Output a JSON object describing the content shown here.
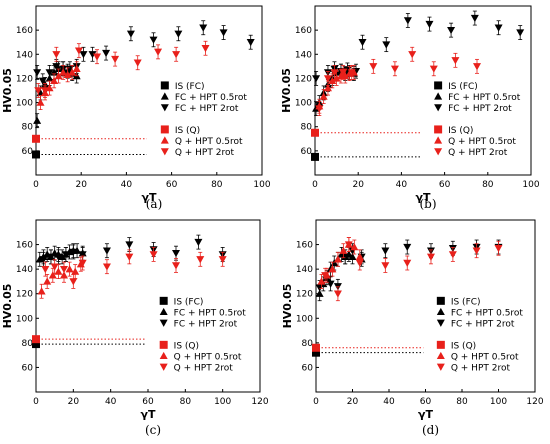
{
  "chart_data": [
    {
      "type": "scatter",
      "panel_label": "(a)",
      "xlabel": "γT",
      "ylabel": "HV0.05",
      "xlim": [
        0,
        100
      ],
      "ylim": [
        40,
        180
      ],
      "xticks": [
        0,
        20,
        40,
        60,
        80,
        100
      ],
      "yticks": [
        60,
        80,
        100,
        120,
        140,
        160
      ],
      "legend": [
        "IS (FC)",
        "FC + HPT 0.5rot",
        "FC + HPT 2rot",
        "IS (Q)",
        "Q + HPT 0.5rot",
        "Q + HPT 2rot"
      ],
      "reference_lines": [
        {
          "series": "IS (FC)",
          "y": 57,
          "color": "#000000"
        },
        {
          "series": "IS (Q)",
          "y": 70,
          "color": "#e8201b"
        }
      ],
      "series": [
        {
          "name": "IS (FC)",
          "marker": "square",
          "color": "#000000",
          "points": [
            [
              0,
              57
            ]
          ]
        },
        {
          "name": "FC + HPT 0.5rot",
          "marker": "triangle-up",
          "color": "#000000",
          "points": [
            [
              0.5,
              85
            ],
            [
              2,
              108
            ],
            [
              4,
              115
            ],
            [
              6,
              120
            ],
            [
              8,
              125
            ],
            [
              10,
              128
            ],
            [
              12,
              128
            ],
            [
              14,
              126
            ],
            [
              16,
              124
            ],
            [
              18,
              122
            ]
          ]
        },
        {
          "name": "FC + HPT 2rot",
          "marker": "triangle-down",
          "color": "#000000",
          "points": [
            [
              0.5,
              125
            ],
            [
              3,
              118
            ],
            [
              6,
              125
            ],
            [
              9,
              130
            ],
            [
              12,
              128
            ],
            [
              15,
              128
            ],
            [
              18,
              130
            ],
            [
              21,
              140
            ],
            [
              25,
              140
            ],
            [
              31,
              141
            ],
            [
              42,
              157
            ],
            [
              52,
              152
            ],
            [
              63,
              157
            ],
            [
              74,
              162
            ],
            [
              83,
              158
            ],
            [
              95,
              150
            ]
          ]
        },
        {
          "name": "IS (Q)",
          "marker": "square",
          "color": "#e8201b",
          "points": [
            [
              0,
              70
            ]
          ]
        },
        {
          "name": "Q + HPT 0.5rot",
          "marker": "triangle-up",
          "color": "#e8201b",
          "points": [
            [
              2,
              100
            ],
            [
              4,
              108
            ],
            [
              6,
              112
            ],
            [
              8,
              118
            ],
            [
              10,
              122
            ],
            [
              12,
              125
            ],
            [
              14,
              123
            ],
            [
              16,
              125
            ],
            [
              18,
              128
            ]
          ]
        },
        {
          "name": "Q + HPT 2rot",
          "marker": "triangle-down",
          "color": "#e8201b",
          "points": [
            [
              1,
              110
            ],
            [
              4,
              110
            ],
            [
              9,
              140
            ],
            [
              19,
              143
            ],
            [
              27,
              138
            ],
            [
              35,
              136
            ],
            [
              45,
              133
            ],
            [
              54,
              142
            ],
            [
              62,
              140
            ],
            [
              75,
              145
            ]
          ]
        }
      ]
    },
    {
      "type": "scatter",
      "panel_label": "(b)",
      "xlabel": "γT",
      "ylabel": "HV0.05",
      "xlim": [
        0,
        100
      ],
      "ylim": [
        40,
        180
      ],
      "xticks": [
        0,
        20,
        40,
        60,
        80,
        100
      ],
      "yticks": [
        60,
        80,
        100,
        120,
        140,
        160
      ],
      "legend": [
        "IS (FC)",
        "FC + HPT 0.5rot",
        "FC + HPT 2rot",
        "IS (Q)",
        "Q + HPT 0.5rot",
        "Q + HPT 2rot"
      ],
      "reference_lines": [
        {
          "series": "IS (FC)",
          "y": 55,
          "color": "#000000"
        },
        {
          "series": "IS (Q)",
          "y": 75,
          "color": "#e8201b"
        }
      ],
      "series": [
        {
          "name": "IS (FC)",
          "marker": "square",
          "color": "#000000",
          "points": [
            [
              0,
              55
            ]
          ]
        },
        {
          "name": "FC + HPT 0.5rot",
          "marker": "triangle-up",
          "color": "#000000",
          "points": [
            [
              0.5,
              95
            ],
            [
              2,
              100
            ],
            [
              4,
              108
            ],
            [
              6,
              115
            ],
            [
              8,
              120
            ],
            [
              10,
              125
            ],
            [
              12,
              126
            ],
            [
              14,
              124
            ],
            [
              16,
              125
            ],
            [
              18,
              124
            ]
          ]
        },
        {
          "name": "FC + HPT 2rot",
          "marker": "triangle-down",
          "color": "#000000",
          "points": [
            [
              0.5,
              120
            ],
            [
              6,
              125
            ],
            [
              9,
              128
            ],
            [
              12,
              126
            ],
            [
              15,
              127
            ],
            [
              19,
              126
            ],
            [
              22,
              150
            ],
            [
              33,
              148
            ],
            [
              43,
              168
            ],
            [
              53,
              165
            ],
            [
              63,
              160
            ],
            [
              74,
              170
            ],
            [
              85,
              162
            ],
            [
              95,
              158
            ]
          ]
        },
        {
          "name": "IS (Q)",
          "marker": "square",
          "color": "#e8201b",
          "points": [
            [
              0,
              75
            ]
          ]
        },
        {
          "name": "Q + HPT 0.5rot",
          "marker": "triangle-up",
          "color": "#e8201b",
          "points": [
            [
              2,
              97
            ],
            [
              4,
              105
            ],
            [
              6,
              112
            ],
            [
              8,
              118
            ],
            [
              10,
              120
            ],
            [
              12,
              122
            ],
            [
              14,
              122
            ],
            [
              16,
              124
            ],
            [
              18,
              125
            ]
          ]
        },
        {
          "name": "Q + HPT 2rot",
          "marker": "triangle-down",
          "color": "#e8201b",
          "points": [
            [
              2,
              95
            ],
            [
              6,
              120
            ],
            [
              9,
              125
            ],
            [
              13,
              125
            ],
            [
              17,
              125
            ],
            [
              27,
              130
            ],
            [
              37,
              128
            ],
            [
              45,
              140
            ],
            [
              55,
              128
            ],
            [
              65,
              135
            ],
            [
              75,
              130
            ]
          ]
        }
      ]
    },
    {
      "type": "scatter",
      "panel_label": "(c)",
      "xlabel": "γT",
      "ylabel": "HV0.05",
      "xlim": [
        0,
        120
      ],
      "ylim": [
        40,
        180
      ],
      "xticks": [
        0,
        20,
        40,
        60,
        80,
        100,
        120
      ],
      "yticks": [
        60,
        80,
        100,
        120,
        140,
        160
      ],
      "legend": [
        "IS (FC)",
        "FC + HPT 0.5rot",
        "FC + HPT 2rot",
        "IS (Q)",
        "Q + HPT 0.5rot",
        "Q + HPT 2rot"
      ],
      "reference_lines": [
        {
          "series": "IS (FC)",
          "y": 79,
          "color": "#000000"
        },
        {
          "series": "IS (Q)",
          "y": 83,
          "color": "#e8201b"
        }
      ],
      "series": [
        {
          "name": "IS (FC)",
          "marker": "square",
          "color": "#000000",
          "points": [
            [
              0,
              79
            ]
          ]
        },
        {
          "name": "FC + HPT 0.5rot",
          "marker": "triangle-up",
          "color": "#000000",
          "points": [
            [
              2,
              148
            ],
            [
              4,
              150
            ],
            [
              6,
              152
            ],
            [
              8,
              150
            ],
            [
              10,
              153
            ],
            [
              12,
              152
            ],
            [
              14,
              150
            ],
            [
              16,
              152
            ],
            [
              18,
              154
            ],
            [
              20,
              155
            ],
            [
              22,
              155
            ],
            [
              25,
              153
            ]
          ]
        },
        {
          "name": "FC + HPT 2rot",
          "marker": "triangle-down",
          "color": "#000000",
          "points": [
            [
              4,
              148
            ],
            [
              8,
              150
            ],
            [
              12,
              150
            ],
            [
              16,
              152
            ],
            [
              20,
              154
            ],
            [
              25,
              152
            ],
            [
              38,
              155
            ],
            [
              50,
              160
            ],
            [
              63,
              156
            ],
            [
              75,
              153
            ],
            [
              87,
              162
            ],
            [
              100,
              152
            ]
          ]
        },
        {
          "name": "IS (Q)",
          "marker": "square",
          "color": "#e8201b",
          "points": [
            [
              0,
              83
            ]
          ]
        },
        {
          "name": "Q + HPT 0.5rot",
          "marker": "triangle-up",
          "color": "#e8201b",
          "points": [
            [
              3,
              122
            ],
            [
              6,
              130
            ],
            [
              9,
              135
            ],
            [
              12,
              138
            ],
            [
              15,
              135
            ],
            [
              18,
              140
            ],
            [
              21,
              138
            ],
            [
              24,
              144
            ]
          ]
        },
        {
          "name": "Q + HPT 2rot",
          "marker": "triangle-down",
          "color": "#e8201b",
          "points": [
            [
              5,
              140
            ],
            [
              10,
              142
            ],
            [
              15,
              140
            ],
            [
              20,
              130
            ],
            [
              25,
              145
            ],
            [
              38,
              142
            ],
            [
              50,
              150
            ],
            [
              63,
              152
            ],
            [
              75,
              143
            ],
            [
              88,
              148
            ],
            [
              100,
              148
            ]
          ]
        }
      ]
    },
    {
      "type": "scatter",
      "panel_label": "(d)",
      "xlabel": "γT",
      "ylabel": "HV0.05",
      "xlim": [
        0,
        120
      ],
      "ylim": [
        40,
        180
      ],
      "xticks": [
        0,
        20,
        40,
        60,
        80,
        100,
        120
      ],
      "yticks": [
        60,
        80,
        100,
        120,
        140,
        160
      ],
      "legend": [
        "IS (FC)",
        "FC + HPT 0.5rot",
        "FC + HPT 2rot",
        "IS (Q)",
        "Q + HPT 0.5rot",
        "Q + HPT 2rot"
      ],
      "reference_lines": [
        {
          "series": "IS (FC)",
          "y": 72,
          "color": "#000000"
        },
        {
          "series": "IS (Q)",
          "y": 76,
          "color": "#e8201b"
        }
      ],
      "series": [
        {
          "name": "IS (FC)",
          "marker": "square",
          "color": "#000000",
          "points": [
            [
              0,
              72
            ]
          ]
        },
        {
          "name": "FC + HPT 0.5rot",
          "marker": "triangle-up",
          "color": "#000000",
          "points": [
            [
              2,
              120
            ],
            [
              4,
              128
            ],
            [
              6,
              133
            ],
            [
              8,
              140
            ],
            [
              10,
              145
            ],
            [
              12,
              148
            ],
            [
              14,
              152
            ],
            [
              16,
              150
            ],
            [
              18,
              152
            ],
            [
              20,
              150
            ],
            [
              25,
              148
            ]
          ]
        },
        {
          "name": "FC + HPT 2rot",
          "marker": "triangle-down",
          "color": "#000000",
          "points": [
            [
              2,
              125
            ],
            [
              8,
              128
            ],
            [
              12,
              126
            ],
            [
              16,
              150
            ],
            [
              20,
              155
            ],
            [
              25,
              150
            ],
            [
              38,
              155
            ],
            [
              50,
              158
            ],
            [
              63,
              155
            ],
            [
              75,
              157
            ],
            [
              88,
              158
            ],
            [
              100,
              158
            ]
          ]
        },
        {
          "name": "IS (Q)",
          "marker": "square",
          "color": "#e8201b",
          "points": [
            [
              0,
              76
            ]
          ]
        },
        {
          "name": "Q + HPT 0.5rot",
          "marker": "triangle-up",
          "color": "#e8201b",
          "points": [
            [
              3,
              130
            ],
            [
              6,
              135
            ],
            [
              9,
              140
            ],
            [
              12,
              148
            ],
            [
              15,
              155
            ],
            [
              18,
              160
            ],
            [
              21,
              158
            ],
            [
              24,
              150
            ]
          ]
        },
        {
          "name": "Q + HPT 2rot",
          "marker": "triangle-down",
          "color": "#e8201b",
          "points": [
            [
              5,
              135
            ],
            [
              12,
              120
            ],
            [
              18,
              160
            ],
            [
              24,
              145
            ],
            [
              38,
              143
            ],
            [
              50,
              145
            ],
            [
              63,
              150
            ],
            [
              75,
              152
            ],
            [
              88,
              155
            ],
            [
              100,
              157
            ]
          ]
        }
      ]
    }
  ]
}
